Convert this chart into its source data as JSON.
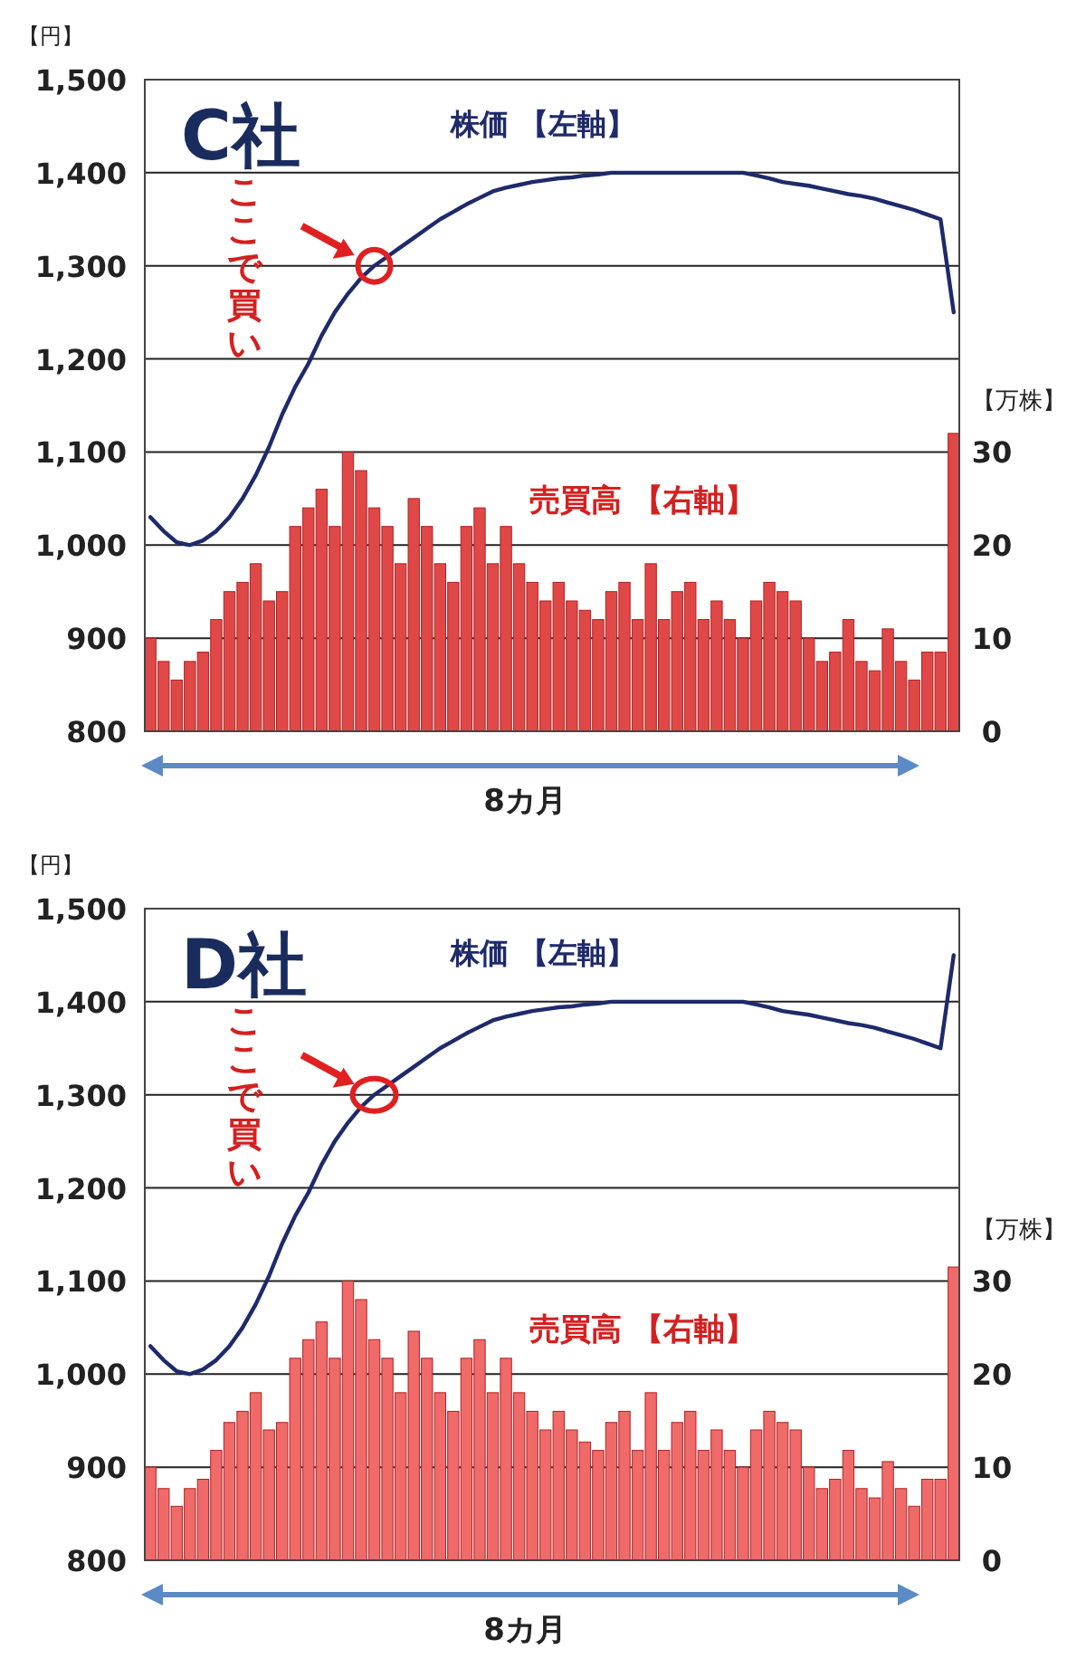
{
  "chart_data": [
    {
      "type": "bar",
      "title": "C社",
      "ylabel": "【円】",
      "y2label": "【万株】",
      "categories": [
        null,
        null,
        null,
        null,
        null,
        null,
        null,
        null,
        null,
        null,
        null,
        null,
        null,
        null,
        null,
        null,
        null,
        null,
        null,
        null,
        null,
        null,
        null,
        null,
        null,
        null,
        null,
        null,
        null,
        null,
        null,
        null,
        null,
        null,
        null,
        null,
        null,
        null,
        null,
        null,
        null,
        null,
        null,
        null,
        null,
        null,
        null,
        null,
        null,
        null,
        null,
        null,
        null,
        null,
        null,
        null,
        null,
        null,
        null,
        null,
        null,
        null
      ],
      "series": [
        {
          "name": "売買高 【右軸】",
          "axis": "y2",
          "color": "#e04848",
          "values": [
            10,
            7.5,
            5.5,
            7.5,
            8.5,
            12,
            15,
            16,
            18,
            14,
            15,
            22,
            24,
            26,
            22,
            30,
            28,
            24,
            22,
            18,
            25,
            22,
            18,
            16,
            22,
            24,
            18,
            22,
            18,
            16,
            14,
            16,
            14,
            13,
            12,
            15,
            16,
            12,
            18,
            12,
            15,
            16,
            12,
            14,
            12,
            10,
            14,
            16,
            15,
            14,
            10,
            7.5,
            8.5,
            12,
            7.5,
            6.5,
            11,
            7.5,
            5.5,
            8.5,
            8.5,
            32
          ]
        },
        {
          "name": "株価 【左軸】",
          "type": "line",
          "color": "#1f2a6b",
          "values": [
            1030,
            1015,
            1003,
            1000,
            1005,
            1015,
            1030,
            1050,
            1075,
            1105,
            1140,
            1170,
            1195,
            1225,
            1250,
            1270,
            1287,
            1300,
            1310,
            1320,
            1330,
            1340,
            1350,
            1358,
            1366,
            1373,
            1380,
            1384,
            1387,
            1390,
            1392,
            1394,
            1395,
            1397,
            1398,
            1400,
            1400,
            1400,
            1400,
            1400,
            1400,
            1400,
            1400,
            1400,
            1400,
            1400,
            1397,
            1394,
            1390,
            1388,
            1386,
            1383,
            1380,
            1377,
            1375,
            1372,
            1368,
            1364,
            1360,
            1355,
            1350,
            1250
          ]
        }
      ],
      "ylim": [
        800,
        1500
      ],
      "yticks": [
        {
          "value": 800,
          "label": "800"
        },
        {
          "value": 900,
          "label": "900"
        },
        {
          "value": 1000,
          "label": "1,000"
        },
        {
          "value": 1100,
          "label": "1,100"
        },
        {
          "value": 1200,
          "label": "1,200"
        },
        {
          "value": 1300,
          "label": "1,300"
        },
        {
          "value": 1400,
          "label": "1,400"
        },
        {
          "value": 1500,
          "label": "1,500"
        }
      ],
      "y2lim": [
        0,
        70
      ],
      "y2ticks": [
        0,
        10,
        20,
        30
      ],
      "grid": "y",
      "annotations": [
        "ここで買い",
        "8カ月"
      ]
    },
    {
      "type": "bar",
      "title": "D社",
      "ylabel": "【円】",
      "y2label": "【万株】",
      "categories": [
        null,
        null,
        null,
        null,
        null,
        null,
        null,
        null,
        null,
        null,
        null,
        null,
        null,
        null,
        null,
        null,
        null,
        null,
        null,
        null,
        null,
        null,
        null,
        null,
        null,
        null,
        null,
        null,
        null,
        null,
        null,
        null,
        null,
        null,
        null,
        null,
        null,
        null,
        null,
        null,
        null,
        null,
        null,
        null,
        null,
        null,
        null,
        null,
        null,
        null,
        null,
        null,
        null,
        null,
        null,
        null,
        null,
        null,
        null,
        null,
        null,
        null
      ],
      "series": [
        {
          "name": "売買高 【右軸】",
          "axis": "y2",
          "color": "#f06a6a",
          "values": [
            10,
            7.7,
            5.8,
            7.7,
            8.7,
            11.8,
            14.8,
            16,
            18,
            14,
            14.8,
            21.7,
            23.7,
            25.6,
            21.7,
            30,
            28,
            23.7,
            21.7,
            18,
            24.6,
            21.7,
            18,
            16,
            21.7,
            23.7,
            18,
            21.7,
            18,
            16,
            14,
            16,
            14,
            12.7,
            11.8,
            14.8,
            16,
            11.8,
            18,
            11.8,
            14.8,
            16,
            11.8,
            14,
            11.8,
            10,
            14,
            16,
            14.8,
            14,
            10,
            7.7,
            8.7,
            11.8,
            7.7,
            6.7,
            10.6,
            7.7,
            5.8,
            8.7,
            8.7,
            31.5
          ]
        },
        {
          "name": "株価 【左軸】",
          "type": "line",
          "color": "#1f2a6b",
          "values": [
            1030,
            1015,
            1003,
            1000,
            1005,
            1015,
            1030,
            1050,
            1075,
            1105,
            1140,
            1170,
            1195,
            1225,
            1250,
            1270,
            1287,
            1300,
            1310,
            1320,
            1330,
            1340,
            1350,
            1358,
            1366,
            1373,
            1380,
            1384,
            1387,
            1390,
            1392,
            1394,
            1395,
            1397,
            1398,
            1400,
            1400,
            1400,
            1400,
            1400,
            1400,
            1400,
            1400,
            1400,
            1400,
            1400,
            1397,
            1394,
            1390,
            1388,
            1386,
            1383,
            1380,
            1377,
            1375,
            1372,
            1368,
            1364,
            1360,
            1355,
            1350,
            1450
          ]
        }
      ],
      "ylim": [
        800,
        1500
      ],
      "yticks": [
        {
          "value": 800,
          "label": "800"
        },
        {
          "value": 900,
          "label": "900"
        },
        {
          "value": 1000,
          "label": "1,000"
        },
        {
          "value": 1100,
          "label": "1,100"
        },
        {
          "value": 1200,
          "label": "1,200"
        },
        {
          "value": 1300,
          "label": "1,300"
        },
        {
          "value": 1400,
          "label": "1,400"
        },
        {
          "value": 1500,
          "label": "1,500"
        }
      ],
      "y2lim": [
        0,
        70
      ],
      "y2ticks": [
        0,
        10,
        20,
        30
      ],
      "grid": "y",
      "annotations": [
        "ここで買い",
        "8カ月"
      ]
    }
  ]
}
